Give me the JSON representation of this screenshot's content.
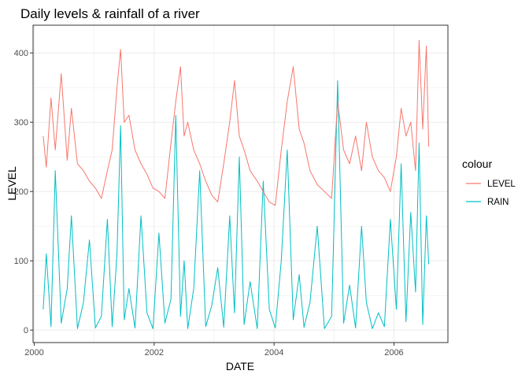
{
  "chart_data": {
    "type": "line",
    "title": "Daily levels & rainfall of a river",
    "xlabel": "DATE",
    "ylabel": "LEVEL",
    "xlim": [
      1999.98,
      2006.9
    ],
    "ylim": [
      -18,
      440
    ],
    "x_ticks": [
      {
        "value": 2000,
        "label": "2000"
      },
      {
        "value": 2002,
        "label": "2002"
      },
      {
        "value": 2004,
        "label": "2004"
      },
      {
        "value": 2006,
        "label": "2006"
      }
    ],
    "y_ticks": [
      {
        "value": 0,
        "label": "0"
      },
      {
        "value": 100,
        "label": "100"
      },
      {
        "value": 200,
        "label": "200"
      },
      {
        "value": 300,
        "label": "300"
      },
      {
        "value": 400,
        "label": "400"
      }
    ],
    "grid": true,
    "legend": {
      "title": "colour",
      "position": "right"
    },
    "series": [
      {
        "name": "LEVEL",
        "color": "#F8766D",
        "x": [
          2000.15,
          2000.2,
          2000.28,
          2000.35,
          2000.45,
          2000.55,
          2000.62,
          2000.72,
          2000.82,
          2000.92,
          2001.02,
          2001.12,
          2001.22,
          2001.3,
          2001.38,
          2001.44,
          2001.5,
          2001.58,
          2001.68,
          2001.78,
          2001.88,
          2001.98,
          2002.08,
          2002.18,
          2002.28,
          2002.36,
          2002.44,
          2002.5,
          2002.56,
          2002.66,
          2002.76,
          2002.86,
          2002.96,
          2003.06,
          2003.16,
          2003.26,
          2003.34,
          2003.42,
          2003.5,
          2003.6,
          2003.72,
          2003.82,
          2003.92,
          2004.02,
          2004.12,
          2004.22,
          2004.32,
          2004.42,
          2004.5,
          2004.6,
          2004.72,
          2004.84,
          2004.96,
          2005.06,
          2005.16,
          2005.26,
          2005.36,
          2005.46,
          2005.54,
          2005.64,
          2005.74,
          2005.84,
          2005.94,
          2006.04,
          2006.12,
          2006.2,
          2006.28,
          2006.36,
          2006.42,
          2006.48,
          2006.54,
          2006.58
        ],
        "y": [
          280,
          235,
          335,
          260,
          370,
          245,
          320,
          240,
          230,
          215,
          205,
          190,
          230,
          260,
          350,
          405,
          300,
          310,
          260,
          240,
          225,
          205,
          200,
          190,
          270,
          330,
          380,
          280,
          300,
          260,
          240,
          215,
          195,
          185,
          240,
          300,
          360,
          280,
          260,
          230,
          215,
          200,
          185,
          180,
          260,
          330,
          380,
          290,
          270,
          230,
          210,
          200,
          190,
          330,
          260,
          240,
          280,
          230,
          300,
          250,
          230,
          220,
          200,
          250,
          320,
          280,
          300,
          230,
          418,
          290,
          410,
          265
        ]
      },
      {
        "name": "RAIN",
        "color": "#00BFC4",
        "x": [
          2000.15,
          2000.2,
          2000.28,
          2000.35,
          2000.45,
          2000.55,
          2000.62,
          2000.72,
          2000.82,
          2000.92,
          2001.02,
          2001.12,
          2001.22,
          2001.3,
          2001.38,
          2001.44,
          2001.5,
          2001.58,
          2001.68,
          2001.78,
          2001.88,
          2001.98,
          2002.08,
          2002.18,
          2002.28,
          2002.36,
          2002.44,
          2002.5,
          2002.56,
          2002.66,
          2002.76,
          2002.86,
          2002.96,
          2003.06,
          2003.16,
          2003.26,
          2003.34,
          2003.42,
          2003.5,
          2003.6,
          2003.72,
          2003.82,
          2003.92,
          2004.02,
          2004.12,
          2004.22,
          2004.32,
          2004.42,
          2004.5,
          2004.6,
          2004.72,
          2004.84,
          2004.96,
          2005.06,
          2005.16,
          2005.26,
          2005.36,
          2005.46,
          2005.54,
          2005.64,
          2005.74,
          2005.84,
          2005.94,
          2006.04,
          2006.12,
          2006.2,
          2006.28,
          2006.36,
          2006.42,
          2006.48,
          2006.54,
          2006.58
        ],
        "y": [
          30,
          110,
          5,
          230,
          10,
          60,
          165,
          2,
          40,
          130,
          3,
          20,
          160,
          5,
          110,
          295,
          15,
          60,
          3,
          165,
          25,
          2,
          140,
          10,
          45,
          310,
          20,
          100,
          2,
          60,
          230,
          5,
          35,
          90,
          4,
          165,
          25,
          250,
          8,
          70,
          2,
          215,
          30,
          3,
          100,
          260,
          15,
          80,
          4,
          40,
          150,
          2,
          20,
          360,
          10,
          65,
          3,
          150,
          40,
          2,
          25,
          5,
          160,
          30,
          240,
          12,
          170,
          55,
          270,
          8,
          165,
          95
        ]
      }
    ]
  }
}
